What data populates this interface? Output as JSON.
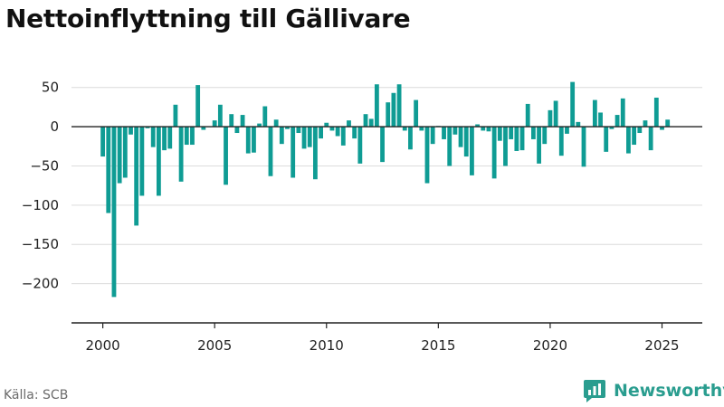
{
  "chart_data": {
    "type": "bar",
    "title": "Nettoinflyttning till Gällivare",
    "source": "Källa: SCB",
    "brand": "Newsworthy",
    "color": "#0f9c94",
    "xlim": [
      1998.6,
      2026.8
    ],
    "ylim": [
      -250,
      75
    ],
    "yticks": [
      50,
      0,
      -50,
      -100,
      -150,
      -200
    ],
    "ytick_labels": [
      "50",
      "0",
      "−50",
      "−100",
      "−150",
      "−200"
    ],
    "xticks": [
      2000,
      2005,
      2010,
      2015,
      2020,
      2025
    ],
    "xtick_labels": [
      "2000",
      "2005",
      "2010",
      "2015",
      "2020",
      "2025"
    ],
    "start_year": 2000,
    "periods_per_year": 4,
    "values": [
      -38,
      -110,
      -217,
      -72,
      -65,
      -10,
      -126,
      -88,
      -2,
      -26,
      -88,
      -30,
      -28,
      28,
      -70,
      -23,
      -23,
      53,
      -4,
      0,
      8,
      28,
      -74,
      16,
      -8,
      15,
      -34,
      -33,
      4,
      26,
      -63,
      9,
      -22,
      -3,
      -65,
      -8,
      -28,
      -26,
      -67,
      -15,
      5,
      -5,
      -12,
      -24,
      8,
      -15,
      -47,
      16,
      10,
      54,
      -45,
      31,
      43,
      54,
      -5,
      -29,
      34,
      -5,
      -72,
      -22,
      1,
      -16,
      -50,
      -10,
      -26,
      -38,
      -62,
      3,
      -5,
      -6,
      -66,
      -18,
      -50,
      -16,
      -31,
      -30,
      29,
      -16,
      -47,
      -22,
      21,
      33,
      -37,
      -9,
      57,
      6,
      -51,
      0,
      34,
      18,
      -32,
      -3,
      15,
      36,
      -34,
      -23,
      -8,
      8,
      -30,
      37,
      -4,
      9
    ]
  }
}
